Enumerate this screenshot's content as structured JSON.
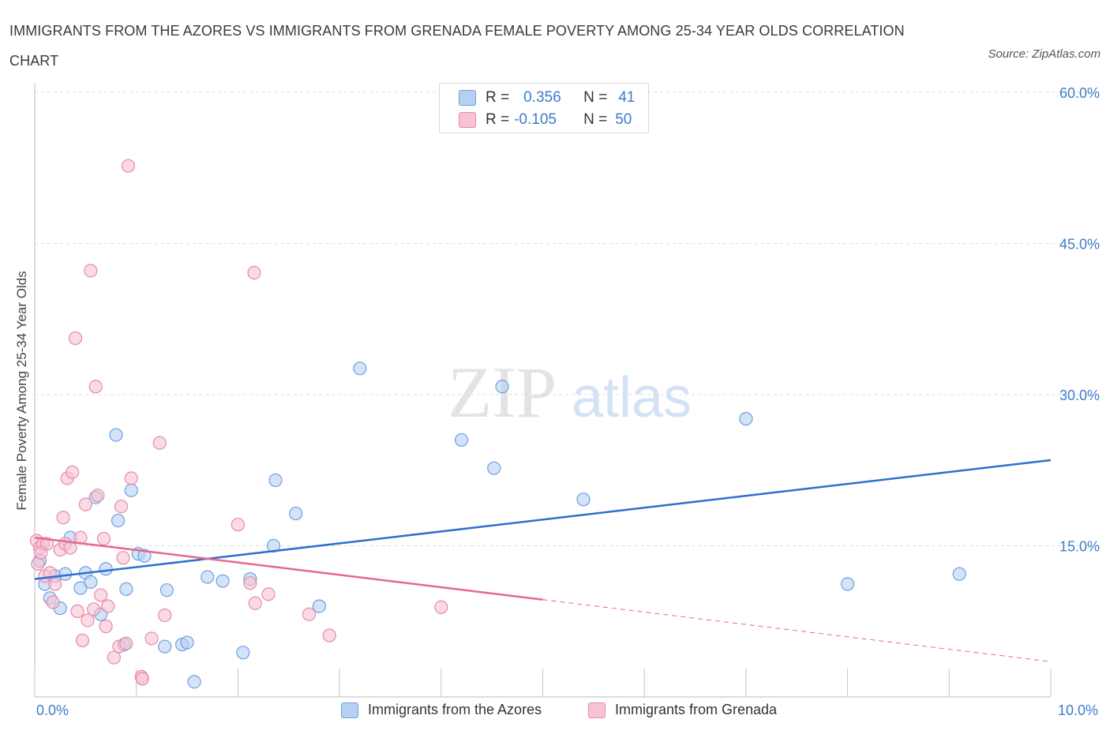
{
  "title": "IMMIGRANTS FROM THE AZORES VS IMMIGRANTS FROM GRENADA FEMALE POVERTY AMONG 25-34 YEAR OLDS CORRELATION CHART",
  "source": "Source: ZipAtlas.com",
  "watermark": {
    "zip": "ZIP",
    "atlas": "atlas"
  },
  "legend": {
    "r_label": "R =",
    "n_label": "N =",
    "series1": {
      "r": "0.356",
      "n": "41"
    },
    "series2": {
      "r": "-0.105",
      "n": "50"
    }
  },
  "colors": {
    "blue_fill": "#b6d0f3",
    "blue_stroke": "#6f9fe0",
    "blue_line": "#2e6fcf",
    "pink_fill": "#f7c3d3",
    "pink_stroke": "#e889a6",
    "pink_line": "#e7678f",
    "value_text": "#3d7cc9"
  },
  "chart_data": {
    "type": "scatter",
    "title": "IMMIGRANTS FROM THE AZORES VS IMMIGRANTS FROM GRENADA FEMALE POVERTY AMONG 25-34 YEAR OLDS CORRELATION CHART",
    "xlabel": "",
    "ylabel": "Female Poverty Among 25-34 Year Olds",
    "xlim": [
      0,
      10
    ],
    "ylim": [
      0,
      60
    ],
    "x_tick_labels": [
      "0.0%",
      "10.0%"
    ],
    "y_ticks": [
      15,
      30,
      45,
      60
    ],
    "y_tick_labels": [
      "15.0%",
      "30.0%",
      "45.0%",
      "60.0%"
    ],
    "grid": true,
    "legend_position": "top-center",
    "series": [
      {
        "name": "Immigrants from the Azores",
        "color": "#6f9fe0",
        "trend": {
          "x": [
            0.0,
            10.0
          ],
          "y": [
            11.7,
            23.5
          ],
          "dashed_from": null
        },
        "points": [
          [
            0.05,
            13.5
          ],
          [
            0.1,
            11.2
          ],
          [
            0.15,
            9.8
          ],
          [
            0.2,
            12.0
          ],
          [
            0.25,
            8.8
          ],
          [
            0.3,
            12.2
          ],
          [
            0.35,
            15.8
          ],
          [
            0.45,
            10.8
          ],
          [
            0.5,
            12.3
          ],
          [
            0.55,
            11.4
          ],
          [
            0.6,
            19.8
          ],
          [
            0.65,
            8.2
          ],
          [
            0.7,
            12.7
          ],
          [
            0.8,
            26.0
          ],
          [
            0.82,
            17.5
          ],
          [
            0.88,
            5.2
          ],
          [
            0.9,
            10.7
          ],
          [
            0.95,
            20.5
          ],
          [
            1.02,
            14.2
          ],
          [
            1.08,
            14.0
          ],
          [
            1.28,
            5.0
          ],
          [
            1.3,
            10.6
          ],
          [
            1.45,
            5.2
          ],
          [
            1.5,
            5.4
          ],
          [
            1.57,
            1.5
          ],
          [
            1.7,
            11.9
          ],
          [
            1.85,
            11.5
          ],
          [
            2.05,
            4.4
          ],
          [
            2.12,
            11.7
          ],
          [
            2.35,
            15.0
          ],
          [
            2.37,
            21.5
          ],
          [
            2.57,
            18.2
          ],
          [
            2.8,
            9.0
          ],
          [
            3.2,
            32.6
          ],
          [
            4.2,
            25.5
          ],
          [
            4.52,
            22.7
          ],
          [
            4.6,
            30.8
          ],
          [
            5.4,
            19.6
          ],
          [
            7.0,
            27.6
          ],
          [
            8.0,
            11.2
          ],
          [
            9.1,
            12.2
          ]
        ]
      },
      {
        "name": "Immigrants from Grenada",
        "color": "#e889a6",
        "trend": {
          "x": [
            0.0,
            10.0
          ],
          "y": [
            15.8,
            3.5
          ],
          "dashed_from": 5.0
        },
        "points": [
          [
            0.02,
            15.5
          ],
          [
            0.05,
            14.8
          ],
          [
            0.08,
            15.2
          ],
          [
            0.1,
            12.0
          ],
          [
            0.12,
            15.2
          ],
          [
            0.15,
            12.3
          ],
          [
            0.18,
            9.4
          ],
          [
            0.2,
            11.2
          ],
          [
            0.25,
            14.6
          ],
          [
            0.28,
            17.8
          ],
          [
            0.3,
            15.2
          ],
          [
            0.32,
            21.7
          ],
          [
            0.35,
            14.8
          ],
          [
            0.37,
            22.3
          ],
          [
            0.4,
            35.6
          ],
          [
            0.42,
            8.5
          ],
          [
            0.45,
            15.8
          ],
          [
            0.47,
            5.6
          ],
          [
            0.5,
            19.1
          ],
          [
            0.52,
            7.6
          ],
          [
            0.55,
            42.3
          ],
          [
            0.58,
            8.7
          ],
          [
            0.6,
            30.8
          ],
          [
            0.62,
            20.0
          ],
          [
            0.65,
            10.1
          ],
          [
            0.68,
            15.7
          ],
          [
            0.7,
            7.0
          ],
          [
            0.72,
            9.0
          ],
          [
            0.78,
            3.9
          ],
          [
            0.83,
            5.0
          ],
          [
            0.85,
            18.9
          ],
          [
            0.87,
            13.8
          ],
          [
            0.9,
            5.3
          ],
          [
            0.92,
            52.7
          ],
          [
            0.95,
            21.7
          ],
          [
            1.05,
            2.0
          ],
          [
            1.06,
            1.8
          ],
          [
            1.15,
            5.8
          ],
          [
            1.23,
            25.2
          ],
          [
            1.28,
            8.1
          ],
          [
            2.0,
            17.1
          ],
          [
            2.12,
            11.3
          ],
          [
            2.16,
            42.1
          ],
          [
            2.17,
            9.3
          ],
          [
            2.3,
            10.2
          ],
          [
            2.7,
            8.2
          ],
          [
            2.9,
            6.1
          ],
          [
            4.0,
            8.9
          ],
          [
            0.03,
            13.2
          ],
          [
            0.06,
            14.3
          ]
        ]
      }
    ]
  }
}
